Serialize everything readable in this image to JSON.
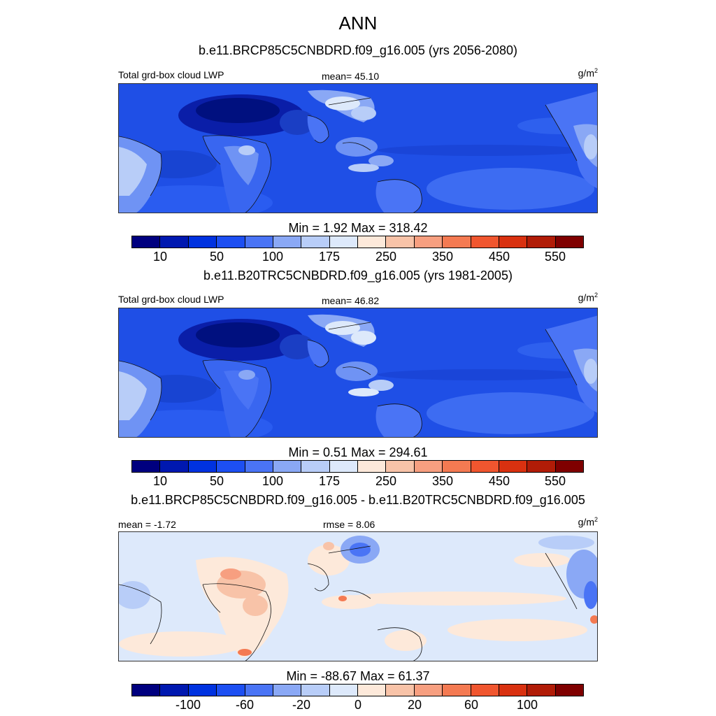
{
  "header": {
    "season": "ANN"
  },
  "units_label": "g/m",
  "units_sup": "2",
  "panels": [
    {
      "title": "b.e11.BRCP85C5CNBDRD.f09_g16.005 (yrs 2056-2080)",
      "left_label": "Total grd-box cloud LWP",
      "center_label": "mean=  45.10",
      "minmax": "Min =   1.92 Max = 318.42"
    },
    {
      "title": "b.e11.B20TRC5CNBDRD.f09_g16.005 (yrs 1981-2005)",
      "left_label": "Total grd-box cloud LWP",
      "center_label": "mean=  46.82",
      "minmax": "Min =   0.51 Max = 294.61"
    },
    {
      "title": "b.e11.BRCP85C5CNBDRD.f09_g16.005 - b.e11.B20TRC5CNBDRD.f09_g16.005",
      "left_label": "mean =  -1.72",
      "center_label": "rmse =   8.06",
      "minmax": "Min = -88.67 Max =  61.37"
    }
  ],
  "colorbar": {
    "colors": [
      "#00007f",
      "#0018b0",
      "#0032e0",
      "#1d4ff2",
      "#4a74f5",
      "#8aa8f5",
      "#b8cdf8",
      "#dde9fb",
      "#fde9da",
      "#f8c3a8",
      "#f79f80",
      "#f47a52",
      "#f0562f",
      "#d93110",
      "#b11c07",
      "#7f0000"
    ],
    "abs_ticks": [
      "10",
      "50",
      "100",
      "175",
      "250",
      "350",
      "450",
      "550"
    ],
    "diff_ticks": [
      "-100",
      "-60",
      "-20",
      "0",
      "20",
      "60",
      "100"
    ]
  },
  "chart_data": [
    {
      "type": "heatmap",
      "title": "b.e11.BRCP85C5CNBDRD.f09_g16.005 (yrs 2056-2080)",
      "variable": "Total grd-box cloud LWP",
      "units": "g/m2",
      "mean": 45.1,
      "min": 1.92,
      "max": 318.42,
      "colorbar_levels": [
        10,
        50,
        100,
        175,
        250,
        350,
        450,
        550
      ]
    },
    {
      "type": "heatmap",
      "title": "b.e11.B20TRC5CNBDRD.f09_g16.005 (yrs 1981-2005)",
      "variable": "Total grd-box cloud LWP",
      "units": "g/m2",
      "mean": 46.82,
      "min": 0.51,
      "max": 294.61,
      "colorbar_levels": [
        10,
        50,
        100,
        175,
        250,
        350,
        450,
        550
      ]
    },
    {
      "type": "heatmap",
      "title": "b.e11.BRCP85C5CNBDRD.f09_g16.005 - b.e11.B20TRC5CNBDRD.f09_g16.005",
      "units": "g/m2",
      "mean": -1.72,
      "rmse": 8.06,
      "min": -88.67,
      "max": 61.37,
      "colorbar_levels": [
        -100,
        -60,
        -20,
        0,
        20,
        60,
        100
      ]
    }
  ]
}
